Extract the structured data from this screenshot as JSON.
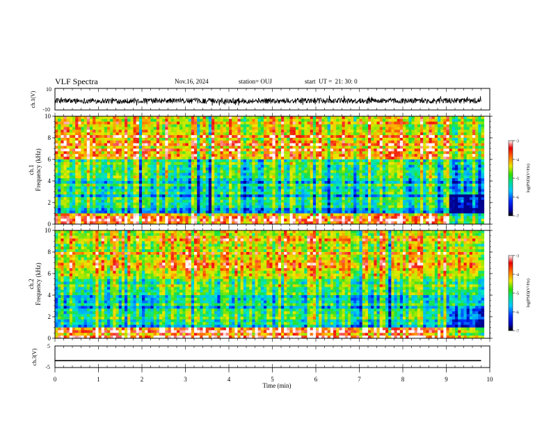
{
  "header": {
    "title": "VLF Spectra",
    "date": "Nov.16, 2024",
    "station": "station= OUJ",
    "start": "start  UT =  21: 30: 0"
  },
  "chart_data": [
    {
      "type": "line",
      "panel": "ch1-waveform",
      "ylabel": "ch.1(V)",
      "ylim": [
        -10,
        10
      ],
      "y_ticks": [
        "10",
        "-10"
      ],
      "description_values": {
        "baseline": -1.5,
        "typical_amplitude": 2.5,
        "burst_amplitude": 5
      }
    },
    {
      "type": "heatmap",
      "panel": "ch1-spectrogram",
      "ylabel": "ch.1\nFrequency (kHz)",
      "ylabel_line1": "ch.1",
      "ylabel_line2": "Frequency (kHz)",
      "ylim": [
        0,
        10
      ],
      "y_ticks": [
        0,
        2,
        4,
        6,
        8,
        10
      ],
      "xlim": [
        0,
        10
      ],
      "colorbar": {
        "label": "log(PSD)(V²/Hz)",
        "range": [
          -7,
          -3
        ],
        "ticks": [
          -3,
          -4,
          -5,
          -6,
          -7
        ]
      }
    },
    {
      "type": "heatmap",
      "panel": "ch2-spectrogram",
      "ylabel": "ch.2\nFrequency (kHz)",
      "ylabel_line1": "ch.2",
      "ylabel_line2": "Frequency (kHz)",
      "ylim": [
        0,
        10
      ],
      "y_ticks": [
        0,
        2,
        4,
        6,
        8,
        10
      ],
      "xlim": [
        0,
        10
      ],
      "colorbar": {
        "label": "log(PSD)(V²/Hz)",
        "range": [
          -7,
          -3
        ],
        "ticks": [
          -3,
          -4,
          -5,
          -6,
          -7
        ]
      }
    },
    {
      "type": "line",
      "panel": "ch3-waveform",
      "ylabel": "ch.3(V)",
      "ylim": [
        -5,
        5
      ],
      "y_ticks": [
        "5",
        "-5"
      ],
      "values": {
        "x": [
          0,
          9.8
        ],
        "y": [
          -1.8,
          -1.8
        ]
      }
    }
  ],
  "xaxis": {
    "label": "Time (min)",
    "range": [
      0,
      10
    ],
    "ticks": [
      "0",
      "1",
      "2",
      "3",
      "4",
      "5",
      "6",
      "7",
      "8",
      "9",
      "10"
    ]
  }
}
